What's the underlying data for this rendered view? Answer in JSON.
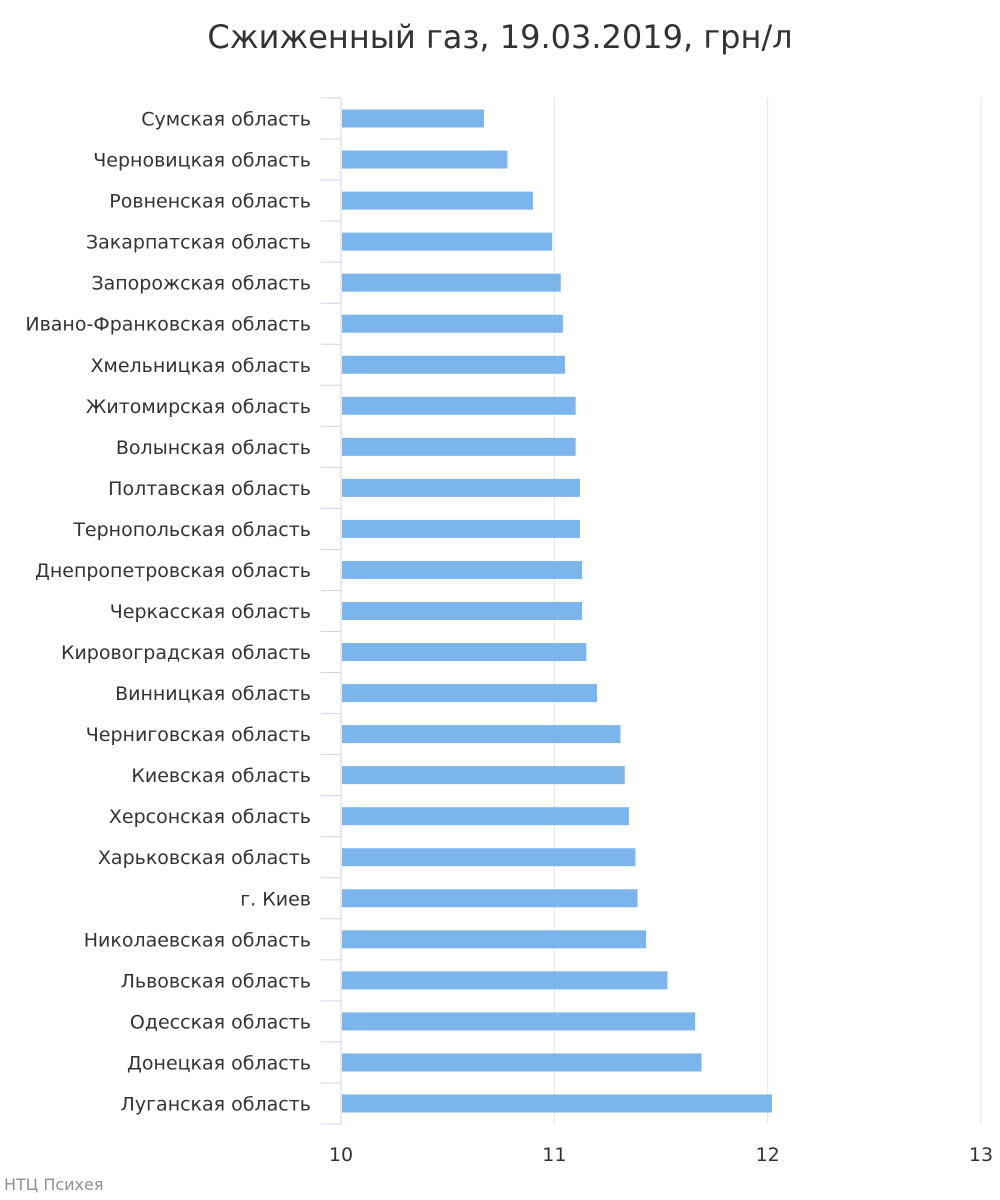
{
  "chart_data": {
    "type": "bar",
    "orientation": "horizontal",
    "title": "Сжиженный газ, 19.03.2019, грн/л",
    "credit": "НТЦ Психея",
    "categories": [
      "Сумская область",
      "Черновицкая область",
      "Ровненская область",
      "Закарпатская область",
      "Запорожская область",
      "Ивано-Франковская область",
      "Хмельницкая область",
      "Житомирская область",
      "Волынская область",
      "Полтавская область",
      "Тернопольская область",
      "Днепропетровская область",
      "Черкасская область",
      "Кировоградская область",
      "Винницкая область",
      "Черниговская область",
      "Киевская область",
      "Херсонская область",
      "Харьковская область",
      "г. Киев",
      "Николаевская область",
      "Львовская область",
      "Одесская область",
      "Донецкая область",
      "Луганская область"
    ],
    "values": [
      10.67,
      10.78,
      10.9,
      10.99,
      11.03,
      11.04,
      11.05,
      11.1,
      11.1,
      11.12,
      11.12,
      11.13,
      11.13,
      11.15,
      11.2,
      11.31,
      11.33,
      11.35,
      11.38,
      11.39,
      11.43,
      11.53,
      11.66,
      11.69,
      12.02
    ],
    "xlim": [
      10,
      13
    ],
    "xticks": [
      "10",
      "11",
      "12",
      "13"
    ],
    "grid": true,
    "bar_color": "#7cb5ec"
  }
}
